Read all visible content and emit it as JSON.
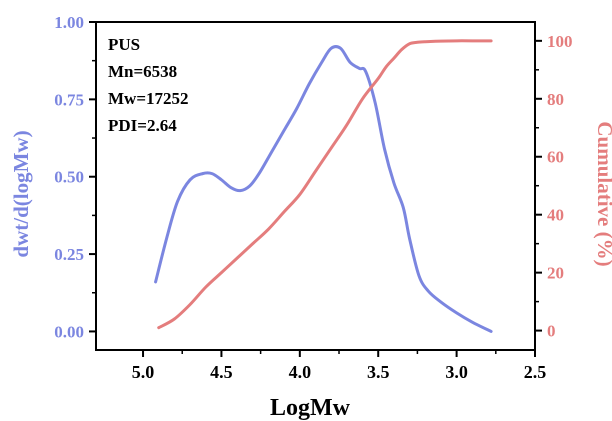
{
  "chart_data": {
    "type": "line",
    "xlabel": "LogMw",
    "ylabel_left": "dwt/d(logMw)",
    "ylabel_right": "Cumulative (%)",
    "x_reversed": true,
    "xlim": [
      5.3,
      2.5
    ],
    "ylim_left": [
      -0.06,
      1.0
    ],
    "ylim_right": [
      -6.7,
      106.5
    ],
    "x_ticks": [
      "5.0",
      "4.5",
      "4.0",
      "3.5",
      "3.0",
      "2.5"
    ],
    "x_tick_values": [
      5.0,
      4.5,
      4.0,
      3.5,
      3.0,
      2.5
    ],
    "y_left_ticks": [
      "0.00",
      "0.25",
      "0.50",
      "0.75",
      "1.00"
    ],
    "y_left_tick_values": [
      0.0,
      0.25,
      0.5,
      0.75,
      1.0
    ],
    "y_right_ticks": [
      "0",
      "20",
      "40",
      "60",
      "80",
      "100"
    ],
    "y_right_tick_values": [
      0,
      20,
      40,
      60,
      80,
      100
    ],
    "annotations": [
      "PUS",
      "Mn=6538",
      "Mw=17252",
      "PDI=2.64"
    ],
    "colors": {
      "left": "#7b86e0",
      "right": "#e47d7d",
      "axis": "#000000"
    },
    "series": [
      {
        "axis": "left",
        "color": "#7b86e0",
        "x": [
          4.92,
          4.85,
          4.78,
          4.7,
          4.62,
          4.56,
          4.5,
          4.44,
          4.38,
          4.32,
          4.26,
          4.18,
          4.1,
          4.02,
          3.94,
          3.86,
          3.8,
          3.74,
          3.68,
          3.62,
          3.58,
          3.52,
          3.46,
          3.4,
          3.34,
          3.3,
          3.24,
          3.18,
          3.1,
          3.0,
          2.9,
          2.78
        ],
        "y": [
          0.16,
          0.3,
          0.42,
          0.49,
          0.51,
          0.51,
          0.49,
          0.465,
          0.455,
          0.47,
          0.51,
          0.58,
          0.65,
          0.72,
          0.8,
          0.87,
          0.915,
          0.915,
          0.87,
          0.85,
          0.84,
          0.74,
          0.59,
          0.48,
          0.4,
          0.3,
          0.18,
          0.13,
          0.095,
          0.06,
          0.03,
          0.0
        ]
      },
      {
        "axis": "right",
        "color": "#e47d7d",
        "x": [
          4.9,
          4.8,
          4.7,
          4.6,
          4.5,
          4.4,
          4.3,
          4.2,
          4.1,
          4.0,
          3.9,
          3.8,
          3.7,
          3.6,
          3.5,
          3.45,
          3.4,
          3.35,
          3.3,
          3.25,
          3.2,
          3.1,
          3.0,
          2.9,
          2.78
        ],
        "y": [
          1,
          4,
          9,
          15,
          20,
          25,
          30,
          35,
          41,
          47,
          55,
          63,
          71,
          80,
          87,
          91,
          94,
          97,
          99,
          99.5,
          99.7,
          99.9,
          100,
          100,
          100
        ]
      }
    ]
  }
}
